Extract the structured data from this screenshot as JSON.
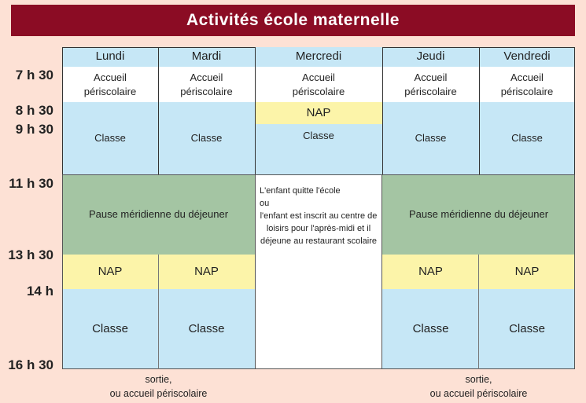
{
  "title": "Activités école maternelle",
  "days": [
    "Lundi",
    "Mardi",
    "Mercredi",
    "Jeudi",
    "Vendredi"
  ],
  "times": [
    "7 h 30",
    "8 h 30",
    "9 h 30",
    "11 h 30",
    "13 h 30",
    "14 h",
    "16 h 30"
  ],
  "accueil": "Accueil périscolaire",
  "classe": "Classe",
  "nap": "NAP",
  "pause": "Pause méridienne du déjeuner",
  "mercredi_afternoon": [
    "L'enfant quitte l'école",
    "ou",
    "l'enfant est inscrit au centre de loisirs pour l'après-midi et il déjeune au restaurant scolaire"
  ],
  "footer": [
    "sortie,",
    "ou accueil périscolaire"
  ],
  "colors": {
    "title_bg": "#8b0c24",
    "page_bg": "#fde1d5",
    "classe": "#c6e7f6",
    "nap": "#fcf4a9",
    "pause": "#a4c5a3"
  }
}
